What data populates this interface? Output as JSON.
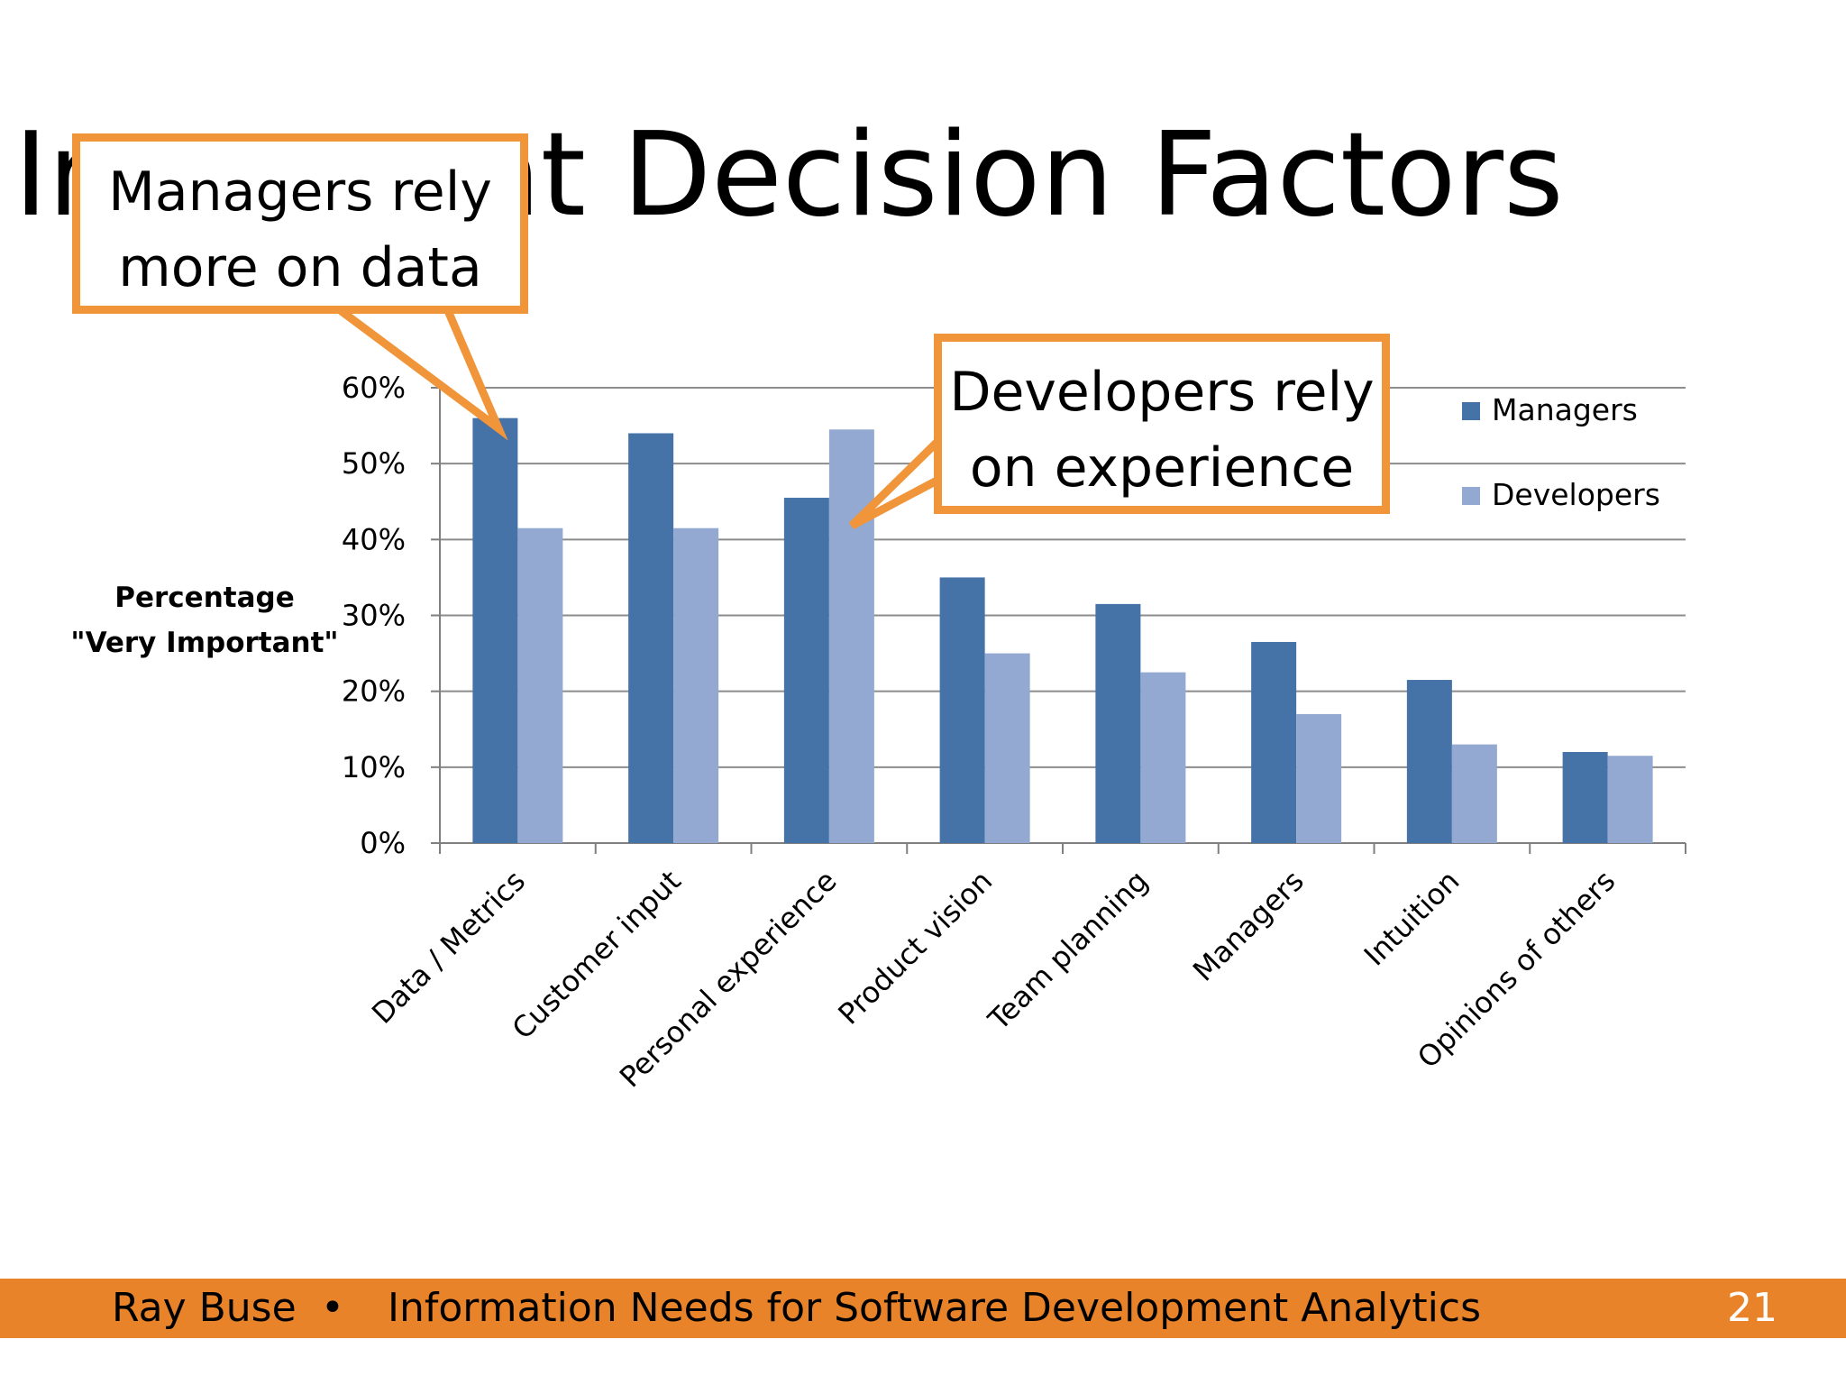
{
  "slide": {
    "title": "Important Decision Factors"
  },
  "callouts": {
    "managers": {
      "line1": "Managers rely",
      "line2": "more on data"
    },
    "developers": {
      "line1": "Developers rely",
      "line2": "on experience"
    }
  },
  "footer": {
    "author": "Ray Buse",
    "separator": "•",
    "deck_title": "Information Needs for Software Development Analytics",
    "page_number": "21"
  },
  "colors": {
    "managers": "#4572a7",
    "developers": "#93a9d1",
    "accent": "#e8832a",
    "callout_border": "#f0953a"
  },
  "chart_data": {
    "type": "bar",
    "categories": [
      "Data / Metrics",
      "Customer input",
      "Personal experience",
      "Product vision",
      "Team planning",
      "Managers",
      "Intuition",
      "Opinions of others"
    ],
    "series": [
      {
        "name": "Managers",
        "values": [
          56,
          54,
          45.5,
          35,
          31.5,
          26.5,
          21.5,
          12
        ]
      },
      {
        "name": "Developers",
        "values": [
          41.5,
          41.5,
          54.5,
          25,
          22.5,
          17,
          13,
          11.5
        ]
      }
    ],
    "ylabel": [
      "Percentage",
      "\"Very Important\""
    ],
    "ylim": [
      0,
      60
    ],
    "yticks": [
      "0%",
      "10%",
      "20%",
      "30%",
      "40%",
      "50%",
      "60%"
    ],
    "grid": true,
    "legend": "top-right"
  }
}
